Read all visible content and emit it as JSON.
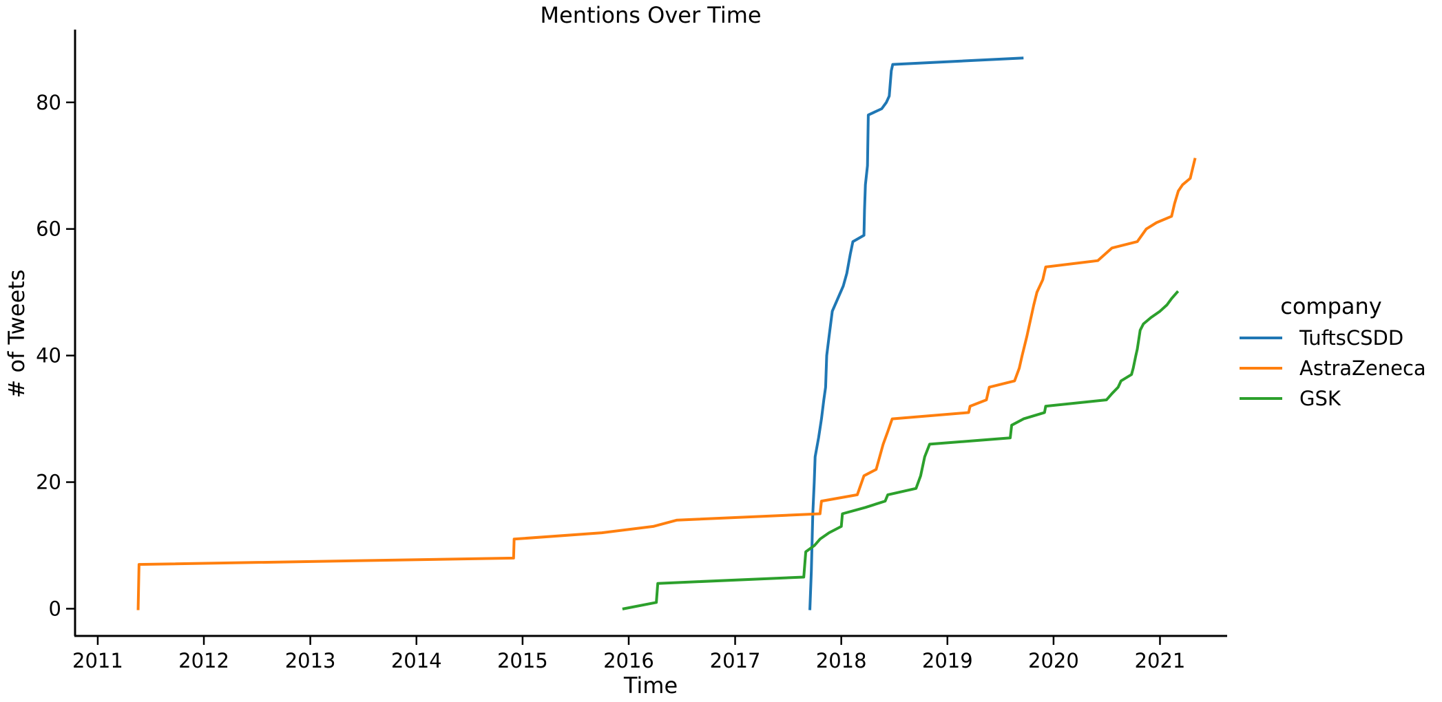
{
  "chart_data": {
    "type": "line",
    "title": "Mentions Over Time",
    "xlabel": "Time",
    "ylabel": "# of Tweets",
    "x_tick_labels": [
      "2011",
      "2012",
      "2013",
      "2014",
      "2015",
      "2016",
      "2017",
      "2018",
      "2019",
      "2020",
      "2021"
    ],
    "y_tick_labels": [
      "0",
      "20",
      "40",
      "60",
      "80"
    ],
    "x_range": [
      "2010-10-15",
      "2021-08-20"
    ],
    "ylim": [
      -4.3,
      91.5
    ],
    "grid": false,
    "legend": {
      "title": "company",
      "placement": "right"
    },
    "series": [
      {
        "name": "TuftsCSDD",
        "color": "#1f77b4",
        "points": [
          [
            "2017-09-15",
            0
          ],
          [
            "2017-09-20",
            6
          ],
          [
            "2017-09-25",
            15
          ],
          [
            "2017-09-30",
            20
          ],
          [
            "2017-10-03",
            24
          ],
          [
            "2017-10-15",
            27
          ],
          [
            "2017-10-25",
            30
          ],
          [
            "2017-11-02",
            33
          ],
          [
            "2017-11-08",
            35
          ],
          [
            "2017-11-12",
            40
          ],
          [
            "2017-11-20",
            43
          ],
          [
            "2017-12-01",
            47
          ],
          [
            "2017-12-20",
            49
          ],
          [
            "2018-01-08",
            51
          ],
          [
            "2018-01-20",
            53
          ],
          [
            "2018-02-01",
            56
          ],
          [
            "2018-02-10",
            58
          ],
          [
            "2018-03-20",
            59
          ],
          [
            "2018-03-22",
            63
          ],
          [
            "2018-03-25",
            67
          ],
          [
            "2018-04-01",
            70
          ],
          [
            "2018-04-04",
            78
          ],
          [
            "2018-05-20",
            79
          ],
          [
            "2018-06-05",
            80
          ],
          [
            "2018-06-15",
            81
          ],
          [
            "2018-06-22",
            85
          ],
          [
            "2018-06-27",
            86
          ],
          [
            "2019-09-15",
            87
          ]
        ]
      },
      {
        "name": "AstraZeneca",
        "color": "#ff7f0e",
        "points": [
          [
            "2011-05-20",
            0
          ],
          [
            "2011-05-23",
            7
          ],
          [
            "2014-12-01",
            8
          ],
          [
            "2014-12-03",
            11
          ],
          [
            "2015-10-01",
            12
          ],
          [
            "2016-03-25",
            13
          ],
          [
            "2016-06-15",
            14
          ],
          [
            "2017-10-20",
            15
          ],
          [
            "2017-10-25",
            17
          ],
          [
            "2018-02-25",
            18
          ],
          [
            "2018-03-20",
            21
          ],
          [
            "2018-05-01",
            22
          ],
          [
            "2018-05-25",
            26
          ],
          [
            "2018-06-10",
            28
          ],
          [
            "2018-06-25",
            30
          ],
          [
            "2019-03-15",
            31
          ],
          [
            "2019-03-20",
            32
          ],
          [
            "2019-05-15",
            33
          ],
          [
            "2019-05-25",
            35
          ],
          [
            "2019-08-20",
            36
          ],
          [
            "2019-09-05",
            38
          ],
          [
            "2019-09-15",
            40
          ],
          [
            "2019-10-01",
            43
          ],
          [
            "2019-10-25",
            48
          ],
          [
            "2019-11-05",
            50
          ],
          [
            "2019-11-25",
            52
          ],
          [
            "2019-12-05",
            54
          ],
          [
            "2020-06-01",
            55
          ],
          [
            "2020-07-20",
            57
          ],
          [
            "2020-10-15",
            58
          ],
          [
            "2020-11-15",
            60
          ],
          [
            "2020-12-20",
            61
          ],
          [
            "2021-02-10",
            62
          ],
          [
            "2021-02-20",
            64
          ],
          [
            "2021-03-05",
            66
          ],
          [
            "2021-03-20",
            67
          ],
          [
            "2021-04-15",
            68
          ],
          [
            "2021-05-01",
            71
          ]
        ]
      },
      {
        "name": "GSK",
        "color": "#2ca02c",
        "points": [
          [
            "2015-12-15",
            0
          ],
          [
            "2016-04-05",
            1
          ],
          [
            "2016-04-10",
            4
          ],
          [
            "2017-08-25",
            5
          ],
          [
            "2017-09-01",
            9
          ],
          [
            "2017-10-01",
            10
          ],
          [
            "2017-10-20",
            11
          ],
          [
            "2017-11-20",
            12
          ],
          [
            "2018-01-01",
            13
          ],
          [
            "2018-01-05",
            15
          ],
          [
            "2018-03-25",
            16
          ],
          [
            "2018-06-01",
            17
          ],
          [
            "2018-06-10",
            18
          ],
          [
            "2018-09-15",
            19
          ],
          [
            "2018-10-01",
            21
          ],
          [
            "2018-10-15",
            24
          ],
          [
            "2018-11-01",
            26
          ],
          [
            "2019-08-05",
            27
          ],
          [
            "2019-08-10",
            29
          ],
          [
            "2019-09-20",
            30
          ],
          [
            "2019-12-01",
            31
          ],
          [
            "2019-12-05",
            32
          ],
          [
            "2020-07-01",
            33
          ],
          [
            "2020-07-20",
            34
          ],
          [
            "2020-08-10",
            35
          ],
          [
            "2020-08-20",
            36
          ],
          [
            "2020-09-25",
            37
          ],
          [
            "2020-10-01",
            38
          ],
          [
            "2020-10-10",
            40
          ],
          [
            "2020-10-15",
            41
          ],
          [
            "2020-10-25",
            44
          ],
          [
            "2020-11-05",
            45
          ],
          [
            "2020-12-01",
            46
          ],
          [
            "2021-01-01",
            47
          ],
          [
            "2021-01-25",
            48
          ],
          [
            "2021-02-10",
            49
          ],
          [
            "2021-03-01",
            50
          ]
        ]
      }
    ]
  }
}
